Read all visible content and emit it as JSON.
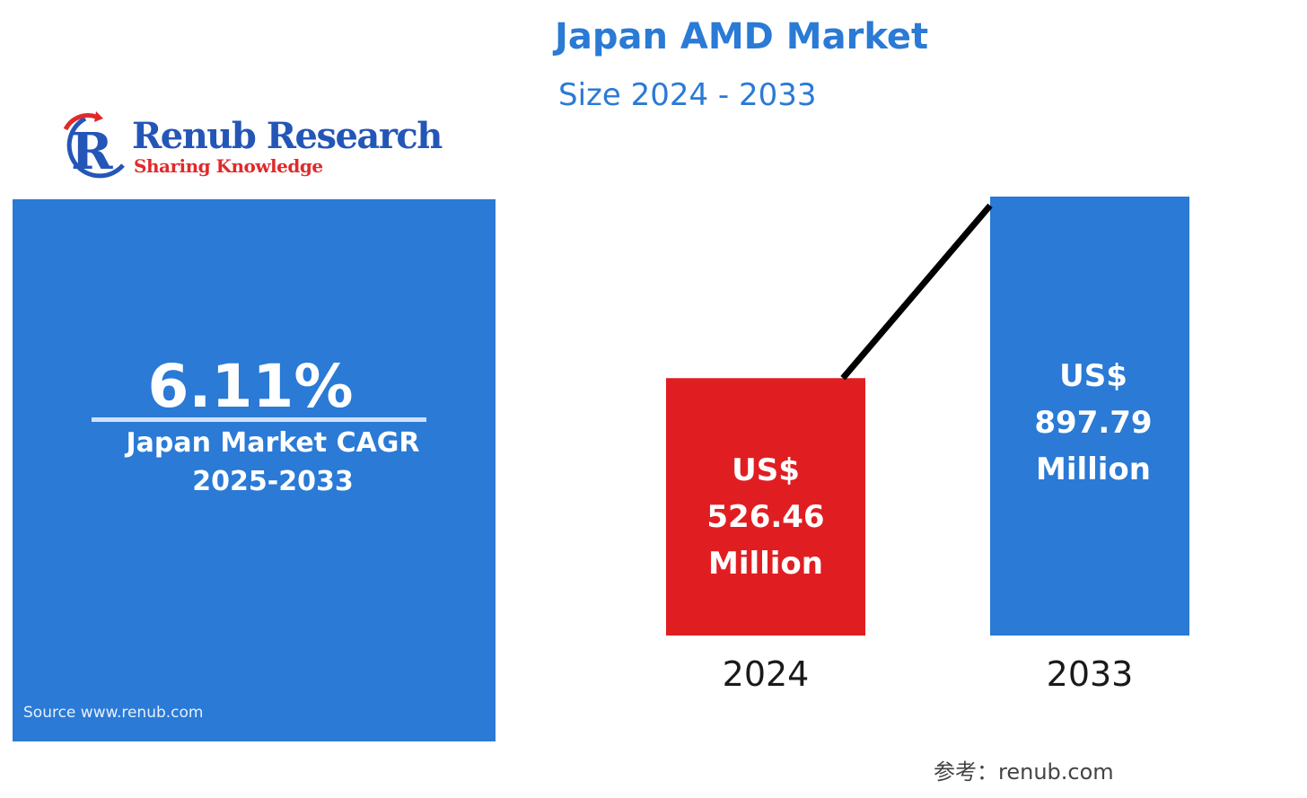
{
  "title": "Japan AMD Market",
  "subtitle": "Size 2024 - 2033",
  "logo": {
    "name": "Renub Research",
    "tagline": "Sharing Knowledge"
  },
  "cagr_panel": {
    "value": "6.11%",
    "label": "Japan Market CAGR",
    "period": "2025-2033",
    "source": "Source  www.renub.com"
  },
  "reference": "参考：renub.com",
  "colors": {
    "blue": "#2a7ad6",
    "red": "#e01e22",
    "trend_line": "#000000"
  },
  "chart_data": {
    "type": "bar",
    "title": "Japan AMD Market",
    "subtitle": "Size 2024 - 2033",
    "categories": [
      "2024",
      "2033"
    ],
    "values": [
      526.46,
      897.79
    ],
    "unit": "US$ Million",
    "bar_labels": [
      [
        "US$",
        "526.46",
        "Million"
      ],
      [
        "US$",
        "897.79",
        "Million"
      ]
    ],
    "bar_colors": [
      "#e01e22",
      "#2a7ad6"
    ],
    "ylim": [
      0,
      897.79
    ],
    "xlabel": "",
    "ylabel": "",
    "trend_line": true,
    "grid": false
  }
}
